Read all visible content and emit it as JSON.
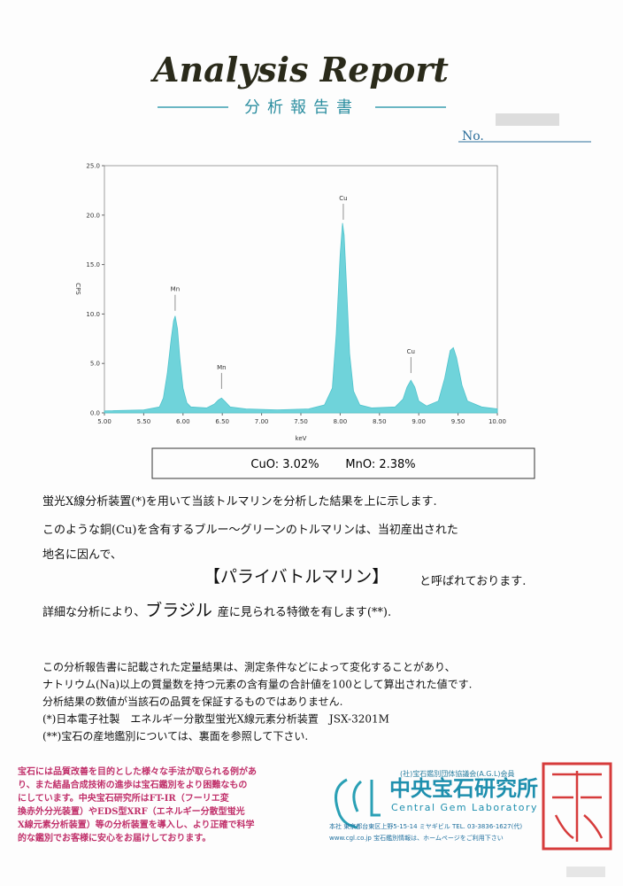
{
  "header": {
    "title": "Analysis Report",
    "subtitle": "分析報告書",
    "no_label": "No."
  },
  "chart_data": {
    "type": "area",
    "x_label": "keV",
    "y_label": "CPS",
    "color": "#6fd3da",
    "xlim": [
      5,
      10
    ],
    "ylim": [
      0,
      25
    ],
    "xticks": [
      {
        "value": 5,
        "label": "5.00"
      },
      {
        "value": 5.5,
        "label": "5.50"
      },
      {
        "value": 6,
        "label": "6.00"
      },
      {
        "value": 6.5,
        "label": "6.50"
      },
      {
        "value": 7,
        "label": "7.00"
      },
      {
        "value": 7.5,
        "label": "7.50"
      },
      {
        "value": 8,
        "label": "8.00"
      },
      {
        "value": 8.5,
        "label": "8.50"
      },
      {
        "value": 9,
        "label": "9.00"
      },
      {
        "value": 9.5,
        "label": "9.50"
      },
      {
        "value": 10,
        "label": "10.00"
      }
    ],
    "yticks": [
      {
        "value": 0,
        "label": "0.0"
      },
      {
        "value": 5,
        "label": "5.0"
      },
      {
        "value": 10,
        "label": "10.0"
      },
      {
        "value": 15,
        "label": "15.0"
      },
      {
        "value": 20,
        "label": "20.0"
      },
      {
        "value": 25,
        "label": "25.0"
      }
    ],
    "x": [
      5.0,
      5.5,
      5.7,
      5.75,
      5.8,
      5.85,
      5.88,
      5.9,
      5.93,
      5.96,
      6.0,
      6.05,
      6.1,
      6.3,
      6.4,
      6.45,
      6.49,
      6.53,
      6.6,
      6.8,
      7.2,
      7.6,
      7.8,
      7.9,
      7.95,
      8.0,
      8.03,
      8.05,
      8.08,
      8.12,
      8.17,
      8.25,
      8.4,
      8.7,
      8.8,
      8.85,
      8.9,
      8.95,
      9.0,
      9.1,
      9.25,
      9.33,
      9.4,
      9.44,
      9.48,
      9.55,
      9.62,
      9.8,
      10.0
    ],
    "values": [
      0.2,
      0.3,
      0.6,
      1.5,
      4.0,
      7.5,
      9.3,
      9.8,
      8.5,
      5.5,
      2.5,
      1.0,
      0.6,
      0.5,
      0.9,
      1.3,
      1.5,
      1.2,
      0.6,
      0.4,
      0.3,
      0.4,
      0.8,
      2.5,
      8,
      16,
      19.2,
      18,
      13,
      6,
      2.2,
      0.8,
      0.5,
      0.6,
      1.4,
      2.6,
      3.3,
      2.6,
      1.2,
      0.7,
      1.2,
      3.5,
      6.3,
      6.6,
      5.6,
      2.8,
      1.2,
      0.6,
      0.4
    ],
    "annotations": [
      {
        "text": "Mn",
        "x": 5.9,
        "y": 12.3
      },
      {
        "text": "Mn",
        "x": 6.49,
        "y": 4.4
      },
      {
        "text": "Cu",
        "x": 8.04,
        "y": 21.5
      },
      {
        "text": "Cu",
        "x": 8.9,
        "y": 6.0
      }
    ]
  },
  "result": {
    "cuo": "CuO: 3.02%",
    "mno": "MnO: 2.38%"
  },
  "body": {
    "line1": "蛍光X線分析装置(*)を用いて当該トルマリンを分析した結果を上に示します.",
    "line2": "このような銅(Cu)を含有するブルー～グリーンのトルマリンは、当初産出された",
    "line3": "地名に因んで、",
    "gem_name": "【パライバトルマリン】",
    "line4": "と呼ばれております.",
    "detail_before": "詳細な分析により、",
    "detail_origin": "ブラジル",
    "detail_after": "産に見られる特徴を有します(**).",
    "notes": [
      "この分析報告書に記載された定量結果は、測定条件などによって変化することがあり、",
      "ナトリウム(Na)以上の質量数を持つ元素の含有量の合計値を100として算出された値です.",
      "分析結果の数値が当該石の品質を保証するものではありません.",
      "(*)日本電子社製　エネルギー分散型蛍光X線元素分析装置　JSX-3201M",
      "(**)宝石の産地鑑別については、裏面を参照して下さい."
    ]
  },
  "footer": {
    "notice": [
      "宝石には品質改善を目的とした様々な手法が取られる例があ",
      "り、また結晶合成技術の進歩は宝石鑑別をより困難なもの",
      "にしています。中央宝石研究所はFT-IR（フーリエ変",
      "換赤外分光装置）やEDS型XRF（エネルギー分散型蛍光",
      "X線元素分析装置）等の分析装置を導入し、より正確で科学",
      "的な鑑別でお客様に安心をお届けしております。"
    ],
    "membership": "(社)宝石鑑別団体協議会(A.G.L)会員",
    "company": "中央宝石研究所",
    "company_en": "Central Gem Laboratory",
    "address": "本社 東京都台東区上野5-15-14 ミヤギビル TEL. 03-3836-1627(代)",
    "web": "www.cgl.co.jp 宝石鑑別情報は、ホームページをご利用下さい"
  }
}
